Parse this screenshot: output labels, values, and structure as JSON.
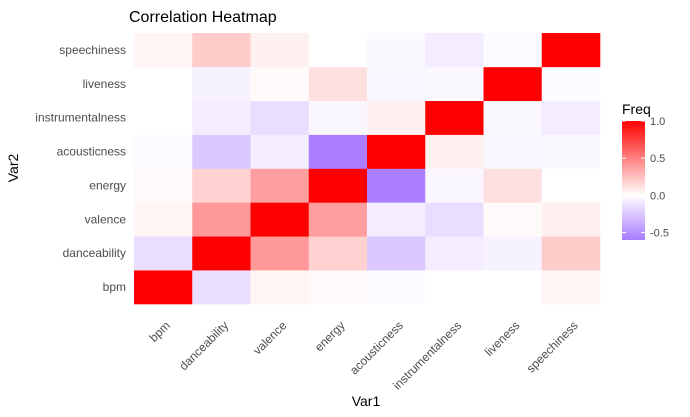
{
  "chart_data": {
    "type": "heatmap",
    "title": "Correlation Heatmap",
    "xlabel": "Var1",
    "ylabel": "Var2",
    "x_categories": [
      "bpm",
      "danceability",
      "valence",
      "energy",
      "acousticness",
      "instrumentalness",
      "liveness",
      "speechiness"
    ],
    "y_categories": [
      "bpm",
      "danceability",
      "valence",
      "energy",
      "acousticness",
      "instrumentalness",
      "liveness",
      "speechiness"
    ],
    "values": [
      [
        1.0,
        -0.15,
        0.04,
        0.02,
        -0.02,
        0.0,
        0.0,
        0.04
      ],
      [
        -0.15,
        1.0,
        0.4,
        0.18,
        -0.25,
        -0.08,
        -0.06,
        0.2
      ],
      [
        0.04,
        0.4,
        1.0,
        0.38,
        -0.08,
        -0.15,
        0.02,
        0.06
      ],
      [
        0.02,
        0.18,
        0.38,
        1.0,
        -0.58,
        -0.04,
        0.12,
        0.0
      ],
      [
        -0.02,
        -0.25,
        -0.08,
        -0.58,
        1.0,
        0.06,
        -0.04,
        -0.03
      ],
      [
        0.0,
        -0.08,
        -0.15,
        -0.04,
        0.06,
        1.0,
        -0.03,
        -0.08
      ],
      [
        0.0,
        -0.06,
        0.02,
        0.12,
        -0.04,
        -0.03,
        1.0,
        -0.02
      ],
      [
        0.04,
        0.2,
        0.06,
        0.0,
        -0.03,
        -0.08,
        -0.02,
        1.0
      ]
    ],
    "legend": {
      "title": "Freq",
      "ticks": [
        1.0,
        0.5,
        0.0,
        -0.5
      ],
      "tick_labels": [
        "1.0",
        "0.5",
        "0.0",
        "-0.5"
      ],
      "range": [
        -0.6,
        1.0
      ],
      "placement": "right"
    },
    "colors": {
      "low": "#a87bff",
      "mid": "#ffffff",
      "high": "#ff0000",
      "background": "#ffffff",
      "grid": "#f0f0f0"
    },
    "grid": true
  }
}
